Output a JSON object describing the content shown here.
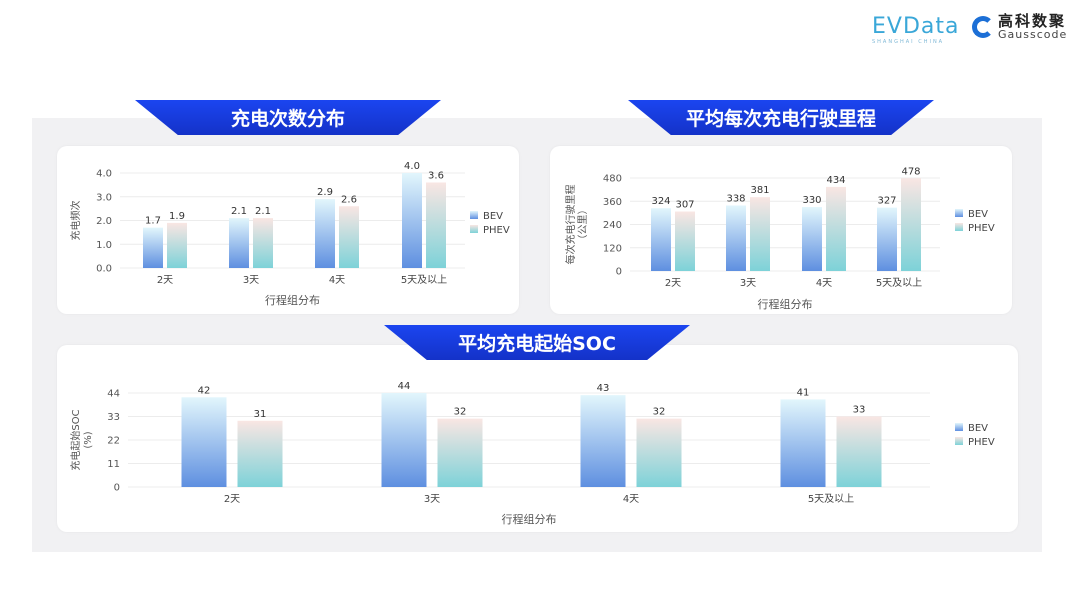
{
  "logos": {
    "evdata": "EVData",
    "evdata_sub": "SHANGHAI CHINA",
    "gausscode_cn": "高科数聚",
    "gausscode_en": "Gausscode"
  },
  "colors": {
    "banner": "#1a3fe0",
    "bev_top": "#e2f6fc",
    "bev_bottom": "#5e8fe0",
    "phev_top": "#f9e6e3",
    "phev_bottom": "#7dd2d8"
  },
  "chart_data": [
    {
      "type": "bar",
      "title": "充电次数分布",
      "xlabel": "行程组分布",
      "ylabel": "充电频次",
      "ylim": [
        0,
        4
      ],
      "yticks": [
        "0.0",
        "1.0",
        "2.0",
        "3.0",
        "4.0"
      ],
      "grid": true,
      "legend": "right",
      "categories": [
        "2天",
        "3天",
        "4天",
        "5天及以上"
      ],
      "series": [
        {
          "name": "BEV",
          "values": [
            1.7,
            2.1,
            2.9,
            4.0
          ],
          "labels": [
            "1.7",
            "2.1",
            "2.9",
            "4.0"
          ]
        },
        {
          "name": "PHEV",
          "values": [
            1.9,
            2.1,
            2.6,
            3.6
          ],
          "labels": [
            "1.9",
            "2.1",
            "2.6",
            "3.6"
          ]
        }
      ]
    },
    {
      "type": "bar",
      "title": "平均每次充电行驶里程",
      "xlabel": "行程组分布",
      "ylabel": "每次充电行驶里程",
      "ylabel2": "（公里）",
      "ylim": [
        0,
        480
      ],
      "yticks": [
        "0",
        "120",
        "240",
        "360",
        "480"
      ],
      "grid": true,
      "legend": "right",
      "categories": [
        "2天",
        "3天",
        "4天",
        "5天及以上"
      ],
      "series": [
        {
          "name": "BEV",
          "values": [
            324,
            338,
            330,
            327
          ],
          "labels": [
            "324",
            "338",
            "330",
            "327"
          ]
        },
        {
          "name": "PHEV",
          "values": [
            307,
            381,
            434,
            478
          ],
          "labels": [
            "307",
            "381",
            "434",
            "478"
          ]
        }
      ]
    },
    {
      "type": "bar",
      "title": "平均充电起始SOC",
      "xlabel": "行程组分布",
      "ylabel": "充电起始SOC",
      "ylabel2": "(%)",
      "ylim": [
        0,
        44
      ],
      "yticks": [
        "0",
        "11",
        "22",
        "33",
        "44"
      ],
      "grid": true,
      "legend": "right",
      "categories": [
        "2天",
        "3天",
        "4天",
        "5天及以上"
      ],
      "series": [
        {
          "name": "BEV",
          "values": [
            42,
            44,
            43,
            41
          ],
          "labels": [
            "42",
            "44",
            "43",
            "41"
          ]
        },
        {
          "name": "PHEV",
          "values": [
            31,
            32,
            32,
            33
          ],
          "labels": [
            "31",
            "32",
            "32",
            "33"
          ]
        }
      ]
    }
  ]
}
